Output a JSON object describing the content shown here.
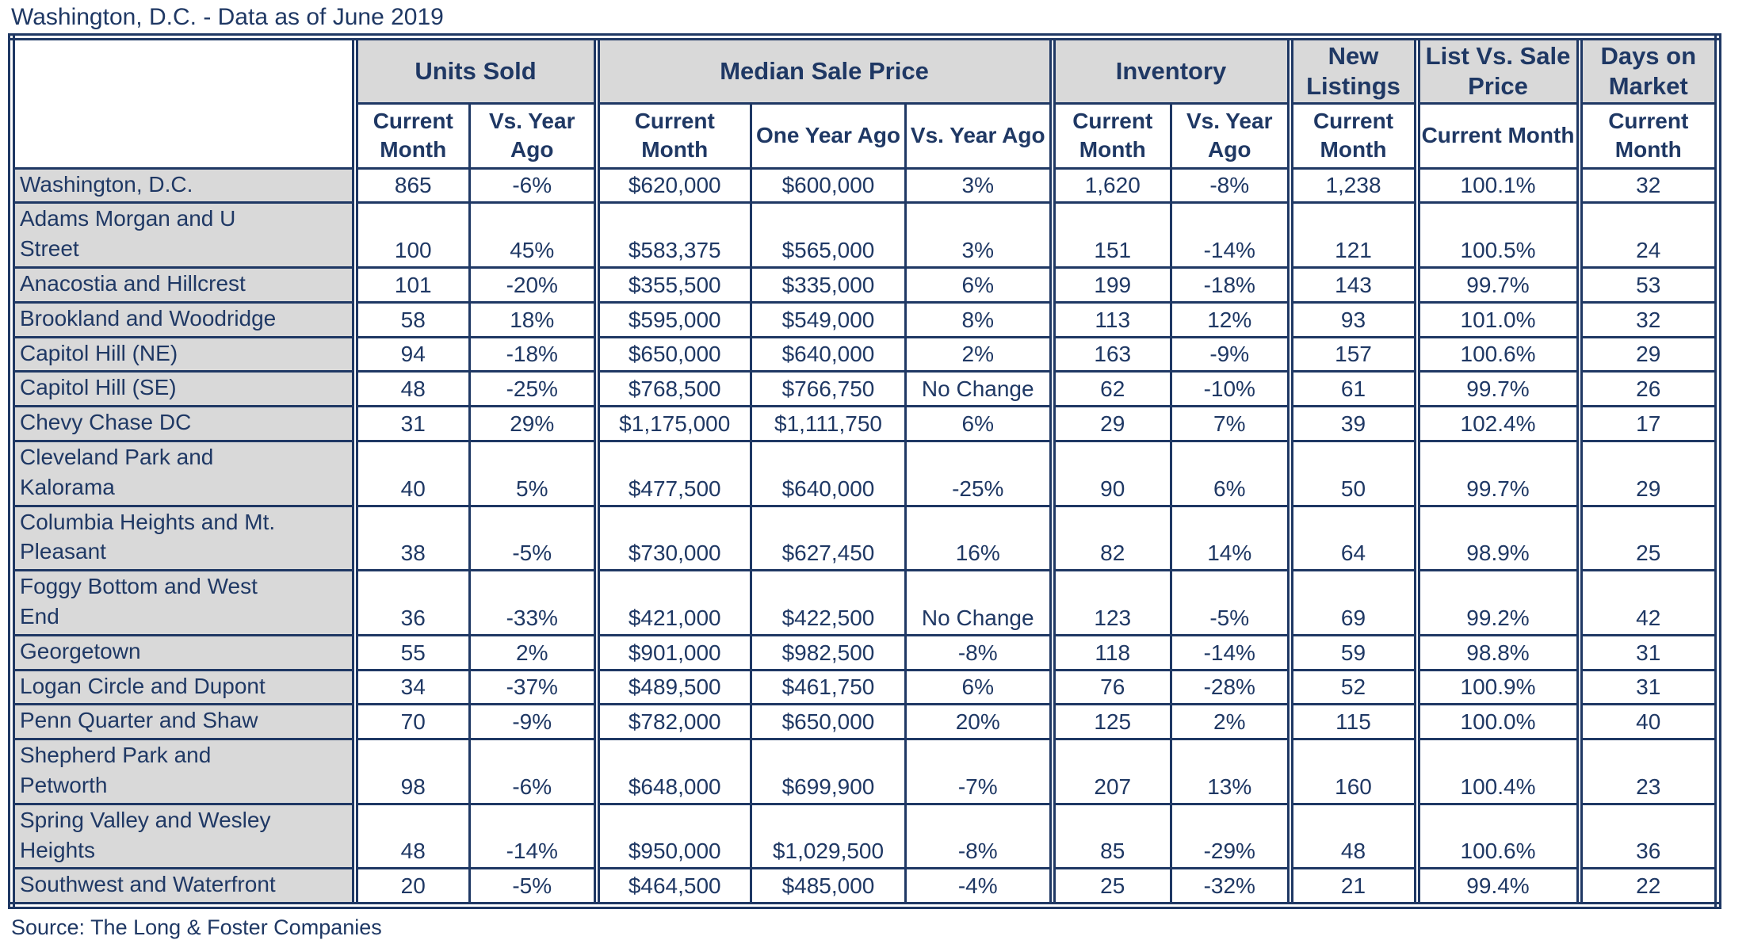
{
  "page_title": "Washington, D.C. - Data as of June 2019",
  "source_note": "Source: The Long & Foster Companies",
  "colors": {
    "navy_text": "#1F3864",
    "border_navy": "#1F3864",
    "header_fill": "#D9D9D9",
    "cell_fill": "#FFFFFF"
  },
  "chart_data": {
    "type": "table",
    "title": "Washington, D.C. - Data as of June 2019",
    "source": "Source: The Long & Foster Companies",
    "column_groups": [
      {
        "label": "Units Sold",
        "columns": [
          "Current Month",
          "Vs. Year Ago"
        ]
      },
      {
        "label": "Median Sale Price",
        "columns": [
          "Current Month",
          "One Year Ago",
          "Vs. Year Ago"
        ]
      },
      {
        "label": "Inventory",
        "columns": [
          "Current Month",
          "Vs. Year Ago"
        ]
      },
      {
        "label": "New Listings",
        "columns": [
          "Current Month"
        ]
      },
      {
        "label": "List Vs. Sale Price",
        "columns": [
          "Current Month"
        ]
      },
      {
        "label": "Days on Market",
        "columns": [
          "Current Month"
        ]
      }
    ],
    "rows": [
      {
        "region": "Washington, D.C.",
        "tall": false,
        "values": [
          "865",
          "-6%",
          "$620,000",
          "$600,000",
          "3%",
          "1,620",
          "-8%",
          "1,238",
          "100.1%",
          "32"
        ]
      },
      {
        "region": "Adams Morgan and U\nStreet",
        "tall": true,
        "values": [
          "100",
          "45%",
          "$583,375",
          "$565,000",
          "3%",
          "151",
          "-14%",
          "121",
          "100.5%",
          "24"
        ]
      },
      {
        "region": "Anacostia and Hillcrest",
        "tall": false,
        "values": [
          "101",
          "-20%",
          "$355,500",
          "$335,000",
          "6%",
          "199",
          "-18%",
          "143",
          "99.7%",
          "53"
        ]
      },
      {
        "region": "Brookland and Woodridge",
        "tall": false,
        "values": [
          "58",
          "18%",
          "$595,000",
          "$549,000",
          "8%",
          "113",
          "12%",
          "93",
          "101.0%",
          "32"
        ]
      },
      {
        "region": "Capitol Hill (NE)",
        "tall": false,
        "values": [
          "94",
          "-18%",
          "$650,000",
          "$640,000",
          "2%",
          "163",
          "-9%",
          "157",
          "100.6%",
          "29"
        ]
      },
      {
        "region": "Capitol Hill (SE)",
        "tall": false,
        "values": [
          "48",
          "-25%",
          "$768,500",
          "$766,750",
          "No Change",
          "62",
          "-10%",
          "61",
          "99.7%",
          "26"
        ]
      },
      {
        "region": "Chevy Chase DC",
        "tall": false,
        "values": [
          "31",
          "29%",
          "$1,175,000",
          "$1,111,750",
          "6%",
          "29",
          "7%",
          "39",
          "102.4%",
          "17"
        ]
      },
      {
        "region": "Cleveland Park and\nKalorama",
        "tall": true,
        "values": [
          "40",
          "5%",
          "$477,500",
          "$640,000",
          "-25%",
          "90",
          "6%",
          "50",
          "99.7%",
          "29"
        ]
      },
      {
        "region": "Columbia Heights and Mt.\nPleasant",
        "tall": true,
        "values": [
          "38",
          "-5%",
          "$730,000",
          "$627,450",
          "16%",
          "82",
          "14%",
          "64",
          "98.9%",
          "25"
        ]
      },
      {
        "region": "Foggy Bottom and West\nEnd",
        "tall": true,
        "values": [
          "36",
          "-33%",
          "$421,000",
          "$422,500",
          "No Change",
          "123",
          "-5%",
          "69",
          "99.2%",
          "42"
        ]
      },
      {
        "region": "Georgetown",
        "tall": false,
        "values": [
          "55",
          "2%",
          "$901,000",
          "$982,500",
          "-8%",
          "118",
          "-14%",
          "59",
          "98.8%",
          "31"
        ]
      },
      {
        "region": "Logan Circle and Dupont",
        "tall": false,
        "values": [
          "34",
          "-37%",
          "$489,500",
          "$461,750",
          "6%",
          "76",
          "-28%",
          "52",
          "100.9%",
          "31"
        ]
      },
      {
        "region": "Penn Quarter and Shaw",
        "tall": false,
        "values": [
          "70",
          "-9%",
          "$782,000",
          "$650,000",
          "20%",
          "125",
          "2%",
          "115",
          "100.0%",
          "40"
        ]
      },
      {
        "region": "Shepherd Park and\nPetworth",
        "tall": true,
        "values": [
          "98",
          "-6%",
          "$648,000",
          "$699,900",
          "-7%",
          "207",
          "13%",
          "160",
          "100.4%",
          "23"
        ]
      },
      {
        "region": "Spring Valley and Wesley\nHeights",
        "tall": true,
        "values": [
          "48",
          "-14%",
          "$950,000",
          "$1,029,500",
          "-8%",
          "85",
          "-29%",
          "48",
          "100.6%",
          "36"
        ]
      },
      {
        "region": "Southwest and Waterfront",
        "tall": false,
        "values": [
          "20",
          "-5%",
          "$464,500",
          "$485,000",
          "-4%",
          "25",
          "-32%",
          "21",
          "99.4%",
          "22"
        ]
      }
    ]
  }
}
